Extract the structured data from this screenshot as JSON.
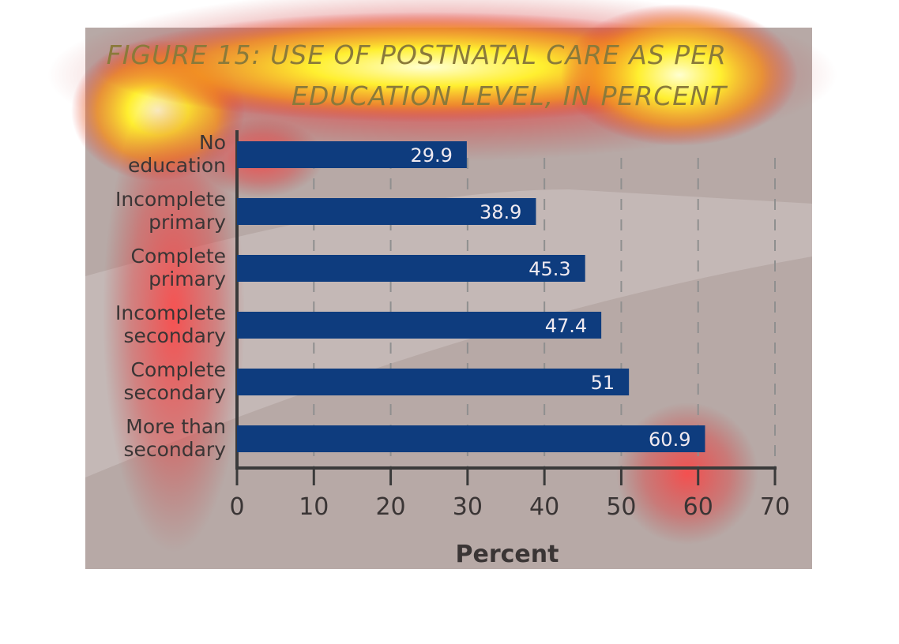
{
  "chart_data": {
    "type": "bar",
    "orientation": "horizontal",
    "title": "FIGURE 15: USE OF POSTNATAL CARE AS PER EDUCATION LEVEL, IN PERCENT",
    "categories": [
      "No\neducation",
      "Incomplete\nprimary",
      "Complete\nprimary",
      "Incomplete\nsecondary",
      "Complete\nsecondary",
      "More than\nsecondary"
    ],
    "values": [
      29.9,
      38.9,
      45.3,
      47.4,
      51,
      60.9
    ],
    "color": "#0e3c7e",
    "x_label": "Percent",
    "xlim": [
      0,
      70
    ],
    "xticks": [
      0,
      10,
      20,
      30,
      40,
      50,
      60,
      70
    ],
    "grid": true
  }
}
